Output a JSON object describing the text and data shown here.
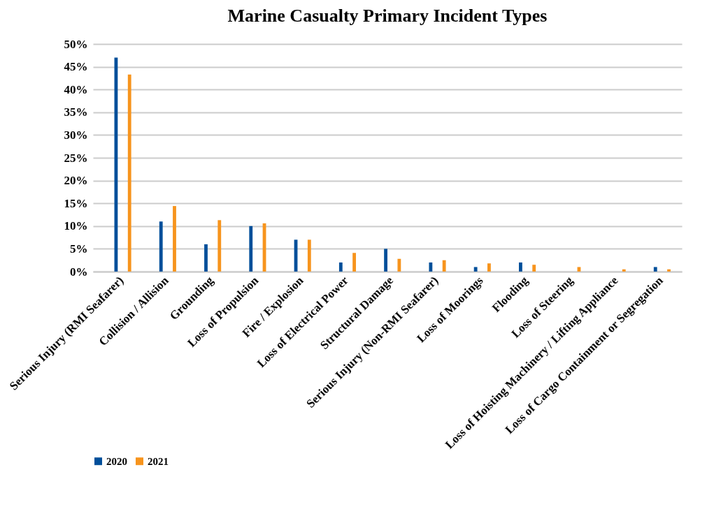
{
  "chart_data": {
    "type": "bar",
    "title": "Marine Casualty Primary Incident Types",
    "categories": [
      "Serious Injury (RMI Seafarer)",
      "Collision / Allision",
      "Grounding",
      "Loss of Propulsion",
      "Fire / Explosion",
      "Loss of Electrical Power",
      "Structural Damage",
      "Serious Injury (Non-RMI Seafarer)",
      "Loss of Moorings",
      "Flooding",
      "Loss of Steering",
      "Loss of Hoisting Machinery / Lifting Appliance",
      "Loss of Cargo Containment or Segregation"
    ],
    "series": [
      {
        "name": "2020",
        "color": "#004f9a",
        "values": [
          47,
          11,
          6,
          10,
          7,
          2,
          5,
          2,
          1,
          2,
          0,
          0,
          1
        ]
      },
      {
        "name": "2021",
        "color": "#f7941d",
        "values": [
          43.3,
          14.4,
          11.3,
          10.6,
          7,
          4.1,
          2.8,
          2.5,
          1.8,
          1.5,
          1.0,
          0.5,
          0.5
        ]
      }
    ],
    "ylim": [
      0,
      50
    ],
    "yticks": [
      {
        "value": 0,
        "label": "0%"
      },
      {
        "value": 5,
        "label": "5%"
      },
      {
        "value": 10,
        "label": "10%"
      },
      {
        "value": 15,
        "label": "15%"
      },
      {
        "value": 20,
        "label": "20%"
      },
      {
        "value": 25,
        "label": "25%"
      },
      {
        "value": 30,
        "label": "30%"
      },
      {
        "value": 35,
        "label": "35%"
      },
      {
        "value": 40,
        "label": "40%"
      },
      {
        "value": 45,
        "label": "45%"
      },
      {
        "value": 50,
        "label": "50%"
      }
    ],
    "grid": "y",
    "legend": "bottom"
  }
}
